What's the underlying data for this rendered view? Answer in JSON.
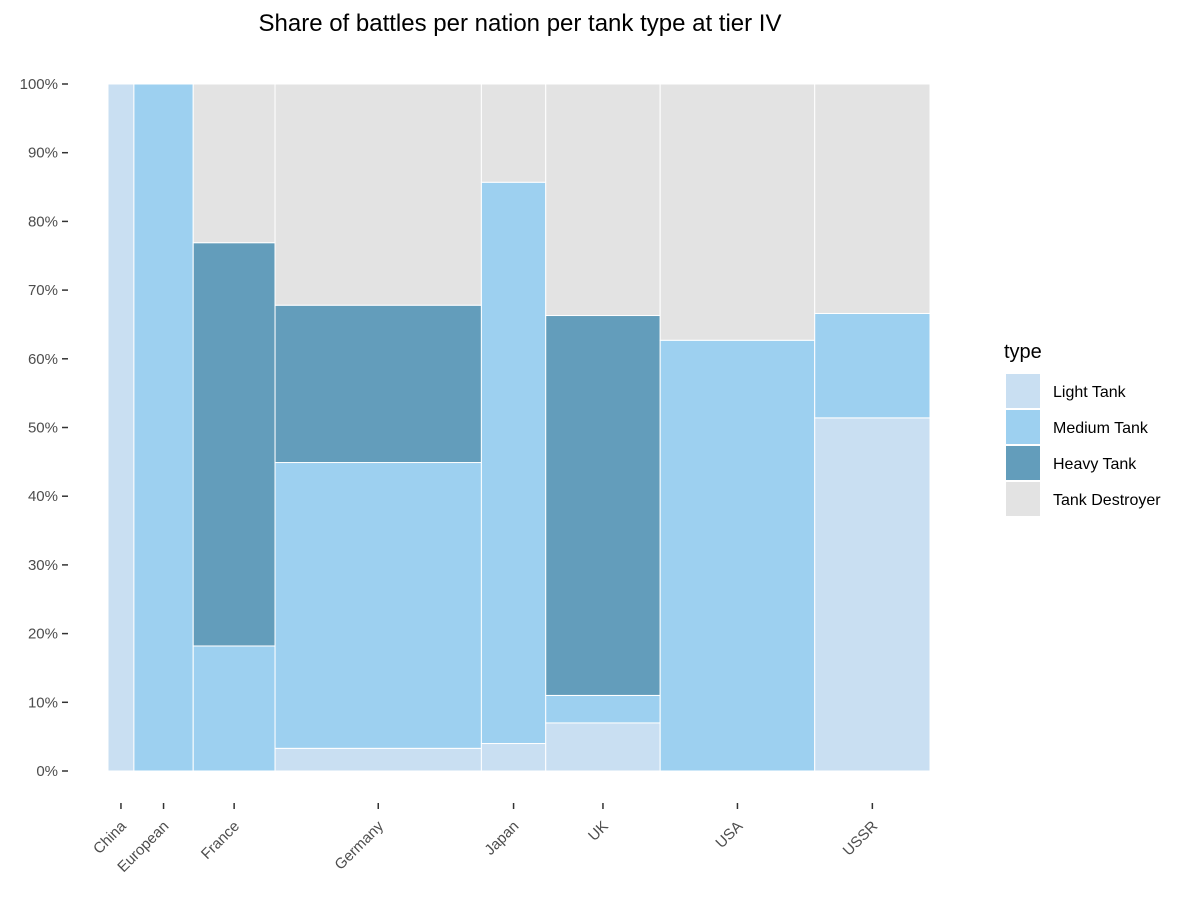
{
  "chart_data": {
    "type": "mosaic",
    "title": "Share of battles per nation per tank type at tier IV",
    "xlabel": "",
    "ylabel": "",
    "ylim": [
      0,
      1
    ],
    "y_ticks": [
      "0%",
      "10%",
      "20%",
      "30%",
      "40%",
      "50%",
      "60%",
      "70%",
      "80%",
      "90%",
      "100%"
    ],
    "legend": {
      "title": "type",
      "position": "right",
      "items": [
        {
          "label": "Light Tank",
          "color": "#c9dff2"
        },
        {
          "label": "Medium Tank",
          "color": "#9dd0f0"
        },
        {
          "label": "Heavy Tank",
          "color": "#639dbb"
        },
        {
          "label": "Tank Destroyer",
          "color": "#e3e3e3"
        }
      ]
    },
    "series_order": [
      "Light Tank",
      "Medium Tank",
      "Heavy Tank",
      "Tank Destroyer"
    ],
    "nations": [
      {
        "name": "China",
        "width_share": 0.031,
        "shares": [
          1.0,
          0.0,
          0.0,
          0.0
        ]
      },
      {
        "name": "European",
        "width_share": 0.071,
        "shares": [
          0.0,
          1.0,
          0.0,
          0.0
        ]
      },
      {
        "name": "France",
        "width_share": 0.098,
        "shares": [
          0.0,
          0.182,
          0.587,
          0.231
        ]
      },
      {
        "name": "Germany",
        "width_share": 0.247,
        "shares": [
          0.033,
          0.416,
          0.229,
          0.322
        ]
      },
      {
        "name": "Japan",
        "width_share": 0.077,
        "shares": [
          0.04,
          0.817,
          0.0,
          0.143
        ]
      },
      {
        "name": "UK",
        "width_share": 0.137,
        "shares": [
          0.07,
          0.04,
          0.553,
          0.337
        ]
      },
      {
        "name": "USA",
        "width_share": 0.185,
        "shares": [
          0.0,
          0.627,
          0.0,
          0.373
        ]
      },
      {
        "name": "USSR",
        "width_share": 0.138,
        "shares": [
          0.514,
          0.152,
          0.0,
          0.334
        ]
      }
    ]
  }
}
